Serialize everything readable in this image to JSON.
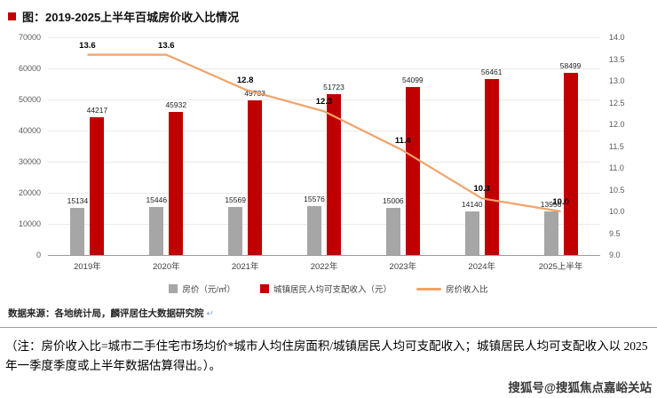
{
  "title": {
    "text": "图：2019-2025上半年百城房价收入比情况"
  },
  "colors": {
    "accent_red": "#c00000",
    "bar_price": "#a6a6a6",
    "bar_income": "#c00000",
    "ratio_line": "#f2a269"
  },
  "chart_data": {
    "type": "bar",
    "title": "2019-2025上半年百城房价收入比情况",
    "categories": [
      "2019年",
      "2020年",
      "2021年",
      "2022年",
      "2023年",
      "2024年",
      "2025上半年"
    ],
    "series": [
      {
        "name": "房价（元/㎡）",
        "type": "bar",
        "color_key": "bar_price",
        "values": [
          15134,
          15446,
          15569,
          15576,
          15006,
          14140,
          13956
        ],
        "axis": "left"
      },
      {
        "name": "城镇居民人均可支配收入（元）",
        "type": "bar",
        "color_key": "bar_income",
        "values": [
          44217,
          45932,
          49733,
          51723,
          54099,
          56461,
          58499
        ],
        "axis": "left"
      },
      {
        "name": "房价收入比",
        "type": "line",
        "color_key": "ratio_line",
        "values": [
          13.6,
          13.6,
          12.8,
          12.3,
          11.4,
          10.3,
          10.0
        ],
        "axis": "right"
      }
    ],
    "left_axis": {
      "min": 0,
      "max": 70000,
      "step": 10000,
      "ticks": [
        "0",
        "10000",
        "20000",
        "30000",
        "40000",
        "50000",
        "60000",
        "70000"
      ]
    },
    "right_axis": {
      "min": 9.0,
      "max": 14.0,
      "step": 0.5,
      "ticks": [
        "9.0",
        "9.5",
        "10.0",
        "10.5",
        "11.0",
        "11.5",
        "12.0",
        "12.5",
        "13.0",
        "13.5",
        "14.0"
      ]
    },
    "grid": "horizontal",
    "legend_position": "bottom"
  },
  "footer": {
    "source": "数据来源：各地统计局，麟评居住大数据研究院",
    "paragraph_mark": "↵",
    "note": "（注：房价收入比=城市二手住宅市场均价*城市人均住房面积/城镇居民人均可支配收入；城镇居民人均可支配收入以 2025 年一季度季度或上半年数据估算得出。）。",
    "watermark": "搜狐号@搜狐焦点嘉峪关站"
  }
}
